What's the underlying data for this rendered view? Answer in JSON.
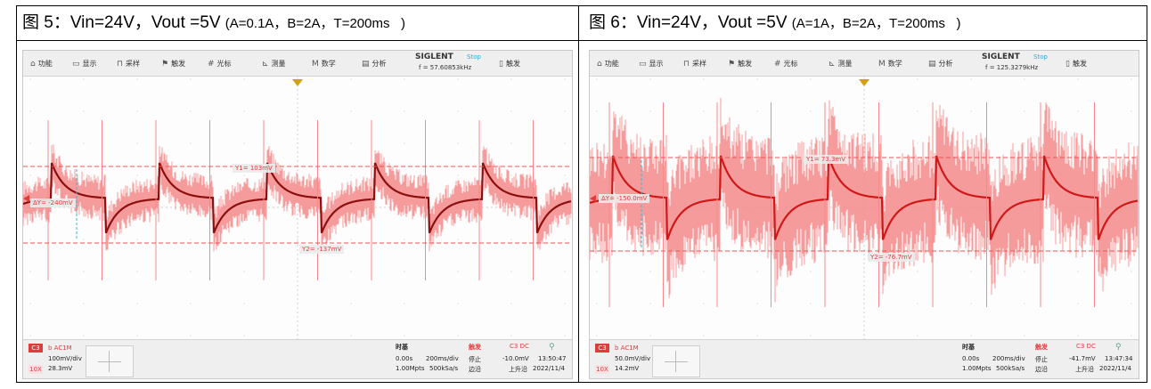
{
  "captions": [
    {
      "main": "图 5：Vin=24V，Vout =5V ",
      "params": "(A=0.1A，B=2A，T=200ms   )"
    },
    {
      "main": "图 6：Vin=24V，Vout =5V ",
      "params": "(A=1A，B=2A，T=200ms   )"
    }
  ],
  "menu": {
    "function": "功能",
    "display": "显示",
    "acquire": "采样",
    "trigger": "触发",
    "cursor": "光标",
    "measure": "测量",
    "math": "数学",
    "analysis": "分析",
    "brand": "SIGLENT",
    "run_state": "Stop",
    "trigger_right": "触发"
  },
  "icons": [
    "home-icon",
    "display-icon",
    "acquire-icon",
    "flag-icon",
    "cursor-icon",
    "measure-icon",
    "math-icon",
    "analysis-icon",
    "trigger-icon"
  ],
  "scopes": [
    {
      "freq": "f = 57.60853kHz",
      "y1": "Y1= 103mV",
      "y2": "Y2= -137mV",
      "delta": "ΔY= -240mV",
      "ch_tag": "C3",
      "coupling": "b AC1M",
      "vdiv": "100mV/div",
      "probe": "10X",
      "offset": "28.3mV",
      "timebase_label": "时基",
      "trig_label": "触发",
      "trig_src": "C3 DC",
      "delay": "0.00s",
      "tdiv": "200ms/div",
      "trig_state": "停止",
      "trig_level": "-10.0mV",
      "time": "13:50:47",
      "mpts": "1.00Mpts",
      "srate": "500kSa/s",
      "edge": "边沿",
      "slope": "上升沿",
      "date": "2022/11/4"
    },
    {
      "freq": "f = 125.3279kHz",
      "y1": "Y1= 73.3mV",
      "y2": "Y2= -76.7mV",
      "delta": "ΔY= -150.0mV",
      "ch_tag": "C3",
      "coupling": "b AC1M",
      "vdiv": "50.0mV/div",
      "probe": "10X",
      "offset": "14.2mV",
      "timebase_label": "时基",
      "trig_label": "触发",
      "trig_src": "C3 DC",
      "delay": "0.00s",
      "tdiv": "200ms/div",
      "trig_state": "停止",
      "trig_level": "-41.7mV",
      "time": "13:47:34",
      "mpts": "1.00Mpts",
      "srate": "500kSa/s",
      "edge": "边沿",
      "slope": "上升沿",
      "date": "2022/11/4"
    }
  ],
  "colors": {
    "trace": "#e03c3c",
    "trace_dark": "#8c0f0f",
    "noise": "#f58a8a",
    "cursor": "#e85555",
    "marker": "#33bbdd",
    "trigger": "#d4a017"
  }
}
